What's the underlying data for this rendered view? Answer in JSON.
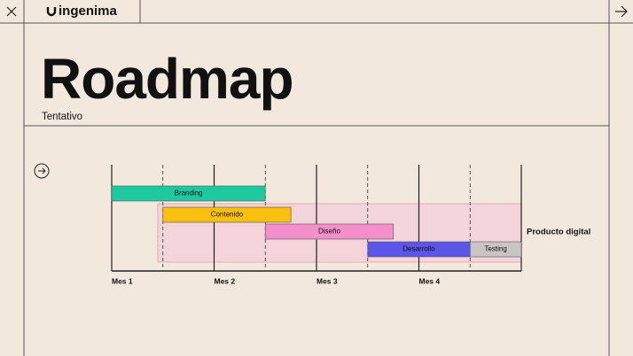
{
  "header": {
    "logo": "ingenima"
  },
  "slide": {
    "title": "Roadmap",
    "subtitle": "Tentativo"
  },
  "chart_data": {
    "type": "gantt",
    "xlim": [
      1,
      5
    ],
    "xticks": [
      {
        "value": 1,
        "label": "Mes 1"
      },
      {
        "value": 2,
        "label": "Mes 2"
      },
      {
        "value": 3,
        "label": "Mes 3"
      },
      {
        "value": 4,
        "label": "Mes 4"
      }
    ],
    "minor_xticks": [
      1.5,
      2.5,
      3.5,
      4.5
    ],
    "tasks": [
      {
        "name": "Branding",
        "start": 1,
        "end": 2.5,
        "color": "#1ec9a0"
      },
      {
        "name": "Contenido",
        "start": 1.5,
        "end": 2.75,
        "color": "#fbbf0f"
      },
      {
        "name": "Diseño",
        "start": 2.5,
        "end": 3.75,
        "color": "#f48fcb"
      },
      {
        "name": "Desarrollo",
        "start": 3.5,
        "end": 4.5,
        "color": "#5b55e8"
      },
      {
        "name": "Testing",
        "start": 4.5,
        "end": 5,
        "color": "#c9c5c4"
      }
    ],
    "region": {
      "label": "Producto digital",
      "start": 1.45,
      "end": 5,
      "color": "#f3cdd5"
    }
  }
}
